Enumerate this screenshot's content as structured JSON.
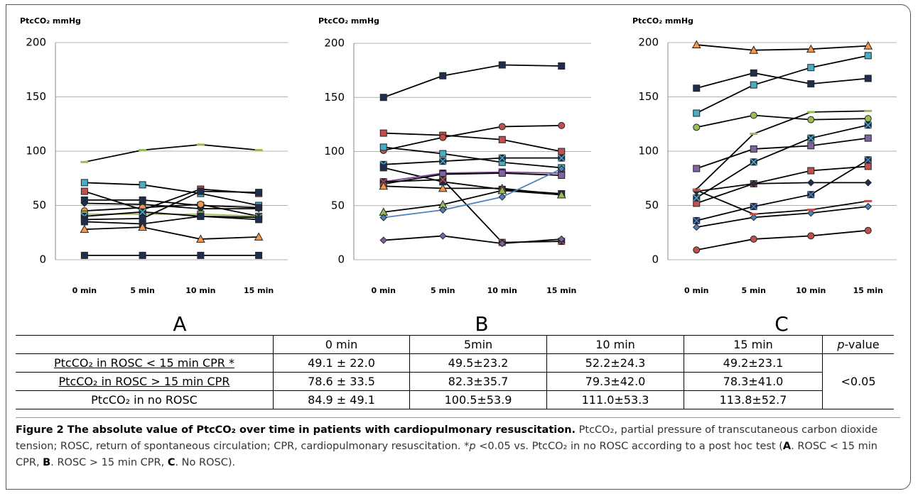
{
  "chart_data": [
    {
      "type": "line",
      "y_label": "PtcCO₂ mmHg",
      "panel": "A",
      "categories": [
        "0 min",
        "5 min",
        "10 min",
        "15 min"
      ],
      "ylim": [
        0,
        200
      ],
      "yticks": [
        0,
        50,
        100,
        150,
        200
      ],
      "grid": true,
      "series": [
        {
          "color": "#000000",
          "values": [
            90,
            101,
            106,
            101
          ],
          "marker": "dash",
          "marker_color": "#9bbb59"
        },
        {
          "color": "#000000",
          "values": [
            71,
            69,
            61,
            50
          ],
          "marker": "square",
          "marker_color": "#4bacc6"
        },
        {
          "color": "#000000",
          "values": [
            63,
            46,
            65,
            61
          ],
          "marker": "square",
          "marker_color": "#c0504d"
        },
        {
          "color": "#000000",
          "values": [
            55,
            55,
            50,
            48
          ],
          "marker": "square",
          "marker_color": "#1f2d4f"
        },
        {
          "color": "#000000",
          "values": [
            52,
            51,
            47,
            47
          ],
          "marker": "diamond",
          "marker_color": "#1f2d4f"
        },
        {
          "color": "#000000",
          "values": [
            45,
            48,
            51,
            40
          ],
          "marker": "circle",
          "marker_color": "#f79646"
        },
        {
          "color": "#9bbb59",
          "values": [
            42,
            42,
            42,
            40
          ],
          "marker": "square",
          "marker_color": "#9bbb59"
        },
        {
          "color": "#000000",
          "values": [
            40,
            44,
            40,
            39
          ],
          "marker": "x",
          "marker_color": "#4bacc6"
        },
        {
          "color": "#000000",
          "values": [
            37,
            38,
            63,
            62
          ],
          "marker": "square",
          "marker_color": "#1f2d4f"
        },
        {
          "color": "#000000",
          "values": [
            35,
            33,
            40,
            37
          ],
          "marker": "x",
          "marker_color": "#1f2d4f"
        },
        {
          "color": "#000000",
          "values": [
            28,
            30,
            19,
            21
          ],
          "marker": "triangle",
          "marker_color": "#f79646"
        },
        {
          "color": "#000000",
          "values": [
            4,
            4,
            4,
            4
          ],
          "marker": "x",
          "marker_color": "#1f2d4f"
        }
      ]
    },
    {
      "type": "line",
      "y_label": "PtcCO₂ mmHg",
      "panel": "B",
      "categories": [
        "0 min",
        "5 min",
        "10 min",
        "15 min"
      ],
      "ylim": [
        0,
        200
      ],
      "yticks": [
        0,
        50,
        100,
        150,
        200
      ],
      "grid": true,
      "series": [
        {
          "color": "#000000",
          "values": [
            150,
            170,
            180,
            179
          ],
          "marker": "square",
          "marker_color": "#1f2d4f"
        },
        {
          "color": "#000000",
          "values": [
            117,
            115,
            111,
            100
          ],
          "marker": "square",
          "marker_color": "#c0504d"
        },
        {
          "color": "#000000",
          "values": [
            101,
            113,
            123,
            124
          ],
          "marker": "circle",
          "marker_color": "#c0504d"
        },
        {
          "color": "#000000",
          "values": [
            104,
            98,
            90,
            85
          ],
          "marker": "square",
          "marker_color": "#4bacc6"
        },
        {
          "color": "#000000",
          "values": [
            88,
            91,
            94,
            94
          ],
          "marker": "x",
          "marker_color": "#4bacc6"
        },
        {
          "color": "#000000",
          "values": [
            85,
            72,
            65,
            61
          ],
          "marker": "x",
          "marker_color": "#1f2d4f"
        },
        {
          "color": "#7f3f98",
          "values": [
            72,
            80,
            81,
            80
          ],
          "marker": "x",
          "marker_color": "#7f3f98"
        },
        {
          "color": "#000000",
          "values": [
            70,
            79,
            80,
            78
          ],
          "marker": "square",
          "marker_color": "#8064a2"
        },
        {
          "color": "#000000",
          "values": [
            72,
            74,
            16,
            17
          ],
          "marker": "x",
          "marker_color": "#c0504d"
        },
        {
          "color": "#000000",
          "values": [
            68,
            66,
            66,
            60
          ],
          "marker": "triangle",
          "marker_color": "#f79646"
        },
        {
          "color": "#000000",
          "values": [
            44,
            51,
            64,
            60
          ],
          "marker": "triangle",
          "marker_color": "#9bbb59"
        },
        {
          "color": "#4f81bd",
          "values": [
            39,
            46,
            58,
            84
          ],
          "marker": "diamond",
          "marker_color": "#4f81bd"
        },
        {
          "color": "#000000",
          "values": [
            18,
            22,
            15,
            19
          ],
          "marker": "diamond",
          "marker_color": "#8064a2"
        }
      ]
    },
    {
      "type": "line",
      "y_label": "PtcCO₂ mmHg",
      "panel": "C",
      "categories": [
        "0 min",
        "5 min",
        "10 min",
        "15 min"
      ],
      "ylim": [
        0,
        200
      ],
      "yticks": [
        0,
        50,
        100,
        150,
        200
      ],
      "grid": true,
      "series": [
        {
          "color": "#000000",
          "values": [
            198,
            193,
            194,
            197
          ],
          "marker": "triangle",
          "marker_color": "#f79646"
        },
        {
          "color": "#000000",
          "values": [
            158,
            172,
            162,
            167
          ],
          "marker": "square",
          "marker_color": "#1f2d4f"
        },
        {
          "color": "#000000",
          "values": [
            135,
            161,
            177,
            188
          ],
          "marker": "square",
          "marker_color": "#4bacc6"
        },
        {
          "color": "#000000",
          "values": [
            122,
            133,
            129,
            130
          ],
          "marker": "circle",
          "marker_color": "#9bbb59"
        },
        {
          "color": "#000000",
          "values": [
            84,
            102,
            105,
            112
          ],
          "marker": "square",
          "marker_color": "#8064a2"
        },
        {
          "color": "#000000",
          "values": [
            65,
            116,
            136,
            137
          ],
          "marker": "dash",
          "marker_color": "#9bbb59"
        },
        {
          "color": "#000000",
          "values": [
            52,
            70,
            82,
            86
          ],
          "marker": "square",
          "marker_color": "#c0504d"
        },
        {
          "color": "#000000",
          "values": [
            57,
            90,
            112,
            124
          ],
          "marker": "x",
          "marker_color": "#4bacc6"
        },
        {
          "color": "#000000",
          "values": [
            63,
            70,
            71,
            71
          ],
          "marker": "diamond",
          "marker_color": "#1f2d4f"
        },
        {
          "color": "#000000",
          "values": [
            36,
            49,
            60,
            92
          ],
          "marker": "x",
          "marker_color": "#4f81bd"
        },
        {
          "color": "#000000",
          "values": [
            30,
            39,
            43,
            49
          ],
          "marker": "diamond",
          "marker_color": "#4f81bd"
        },
        {
          "color": "#000000",
          "values": [
            64,
            42,
            46,
            54
          ],
          "marker": "dash",
          "marker_color": "#c0504d"
        },
        {
          "color": "#000000",
          "values": [
            9,
            19,
            22,
            27
          ],
          "marker": "circle",
          "marker_color": "#c0504d"
        }
      ]
    }
  ],
  "table": {
    "columns": [
      "0 min",
      "5min",
      "10 min",
      "15 min"
    ],
    "p_header": [
      "p",
      "-value"
    ],
    "p_value": "<0.05",
    "rows": [
      {
        "label": "PtcCO₂ in ROSC < 15 min CPR *",
        "values": [
          "49.1 ± 22.0",
          "49.5±23.2",
          "52.2±24.3",
          "49.2±23.1"
        ]
      },
      {
        "label": "PtcCO₂ in ROSC > 15 min CPR",
        "values": [
          "78.6 ± 33.5",
          "82.3±35.7",
          "79.3±42.0",
          "78.3±41.0"
        ]
      },
      {
        "label": "PtcCO₂ in no ROSC",
        "values": [
          "84.9 ± 49.1",
          "100.5±53.9",
          "111.0±53.3",
          "113.8±52.7"
        ]
      }
    ]
  },
  "caption": {
    "title": "Figure 2 The absolute value of PtcCO₂ over time in patients with cardiopulmonary resuscitation.",
    "parts": [
      " PtcCO₂, partial pressure of transcutaneous carbon dioxide tension; ROSC, return of spontaneous circulation; CPR, cardiopulmonary resuscitation. *",
      "p",
      " <0.05 vs. PtcCO₂ in no ROSC according to a post hoc test (",
      "A",
      ". ROSC < 15 min CPR, ",
      "B",
      ". ROSC > 15 min CPR, ",
      "C",
      ". No ROSC)."
    ]
  }
}
